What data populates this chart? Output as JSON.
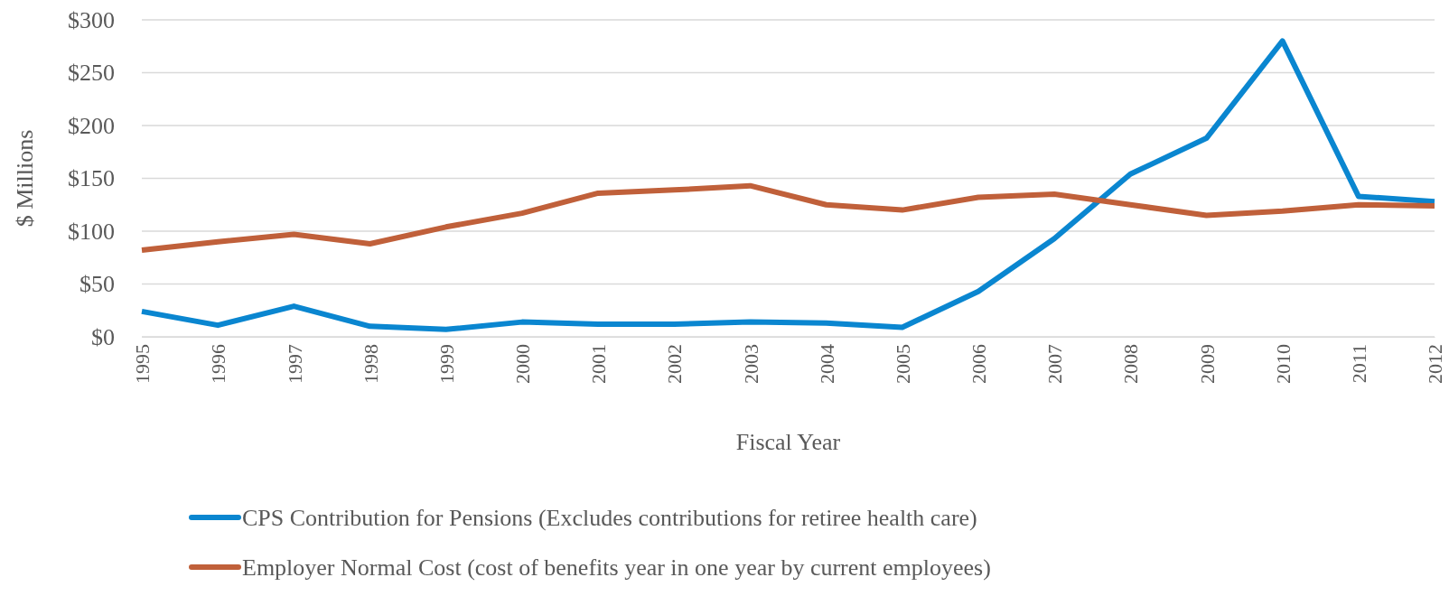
{
  "chart_data": {
    "type": "line",
    "xlabel": "Fiscal Year",
    "ylabel": "$ Millions",
    "categories": [
      "1995",
      "1996",
      "1997",
      "1998",
      "1999",
      "2000",
      "2001",
      "2002",
      "2003",
      "2004",
      "2005",
      "2006",
      "2007",
      "2008",
      "2009",
      "2010",
      "2011",
      "2012"
    ],
    "series": [
      {
        "name": "CPS Contribution for Pensions (Excludes contributions for retiree health care)",
        "color": "#0a86d0",
        "values": [
          24,
          11,
          29,
          10,
          7,
          14,
          12,
          12,
          14,
          13,
          9,
          43,
          93,
          154,
          188,
          280,
          133,
          128
        ]
      },
      {
        "name": "Employer Normal Cost (cost of benefits year in one year by current employees)",
        "color": "#c0603a",
        "values": [
          82,
          90,
          97,
          88,
          104,
          117,
          136,
          139,
          143,
          125,
          120,
          132,
          135,
          125,
          115,
          119,
          125,
          124
        ]
      }
    ],
    "ylim": [
      0,
      300
    ],
    "yticks": [
      {
        "value": 0,
        "label": "$0"
      },
      {
        "value": 50,
        "label": "$50"
      },
      {
        "value": 100,
        "label": "$100"
      },
      {
        "value": 150,
        "label": "$150"
      },
      {
        "value": 200,
        "label": "$200"
      },
      {
        "value": 250,
        "label": "$250"
      },
      {
        "value": 300,
        "label": "$300"
      }
    ],
    "grid": "y",
    "legend": "bottom",
    "marker": "none",
    "line_style": "solid"
  }
}
